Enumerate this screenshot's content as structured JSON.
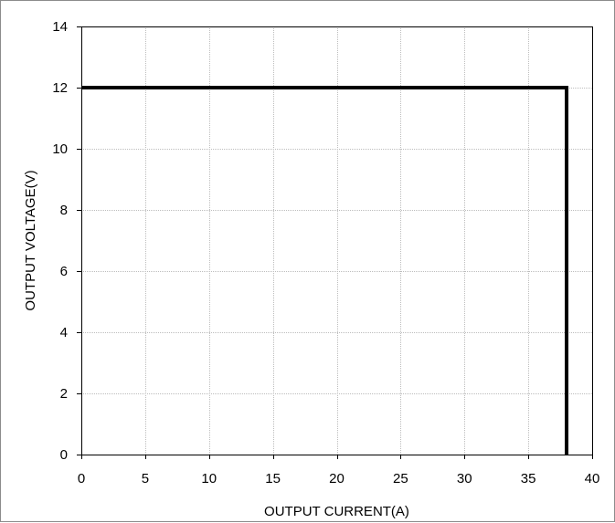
{
  "chart_data": {
    "type": "line",
    "title": "",
    "xlabel": "OUTPUT CURRENT(A)",
    "ylabel": "OUTPUT VOLTAGE(V)",
    "xlim": [
      0,
      40
    ],
    "ylim": [
      0,
      14
    ],
    "x_ticks": [
      0,
      5,
      10,
      15,
      20,
      25,
      30,
      35,
      40
    ],
    "y_ticks": [
      0,
      2,
      4,
      6,
      8,
      10,
      12,
      14
    ],
    "grid": true,
    "legend": "none",
    "series": [
      {
        "x": [
          0,
          38,
          38
        ],
        "y": [
          12,
          12,
          0
        ],
        "color": "#000000"
      }
    ]
  }
}
